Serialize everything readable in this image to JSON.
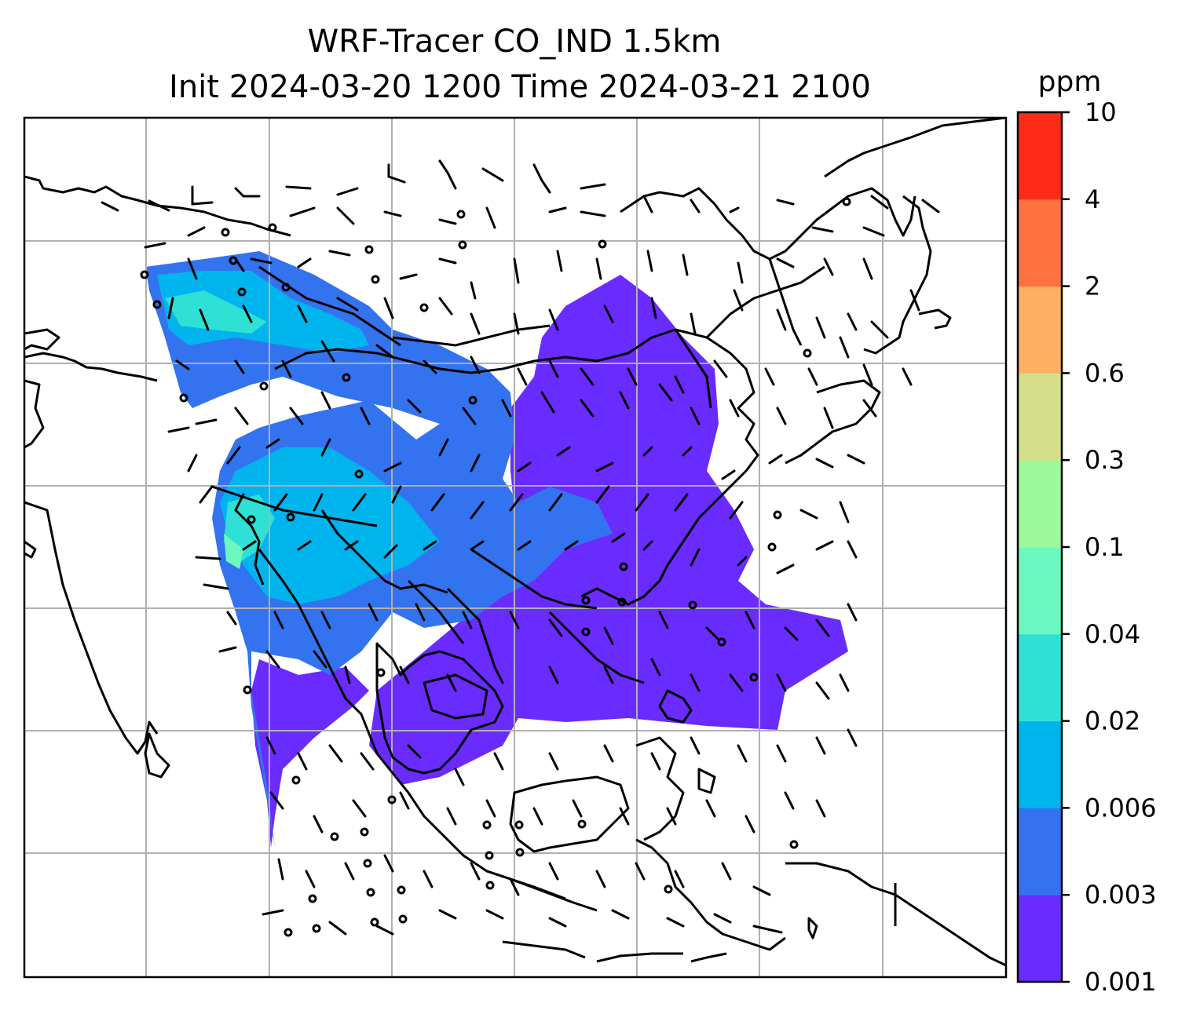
{
  "title": {
    "line1": "WRF-Tracer CO_IND 1.5km",
    "line2": "Init 2024-03-20 1200 Time 2024-03-21 2100"
  },
  "colorbar": {
    "unit": "ppm",
    "levels": [
      "0.001",
      "0.003",
      "0.006",
      "0.02",
      "0.04",
      "0.1",
      "0.3",
      "0.6",
      "2",
      "4",
      "10"
    ],
    "colors": [
      "#6a2bff",
      "#3373f0",
      "#00b4ee",
      "#2fe0d4",
      "#6cf9c1",
      "#9cf99c",
      "#d3e087",
      "#ffb062",
      "#ff713e",
      "#ff2b18"
    ]
  },
  "map": {
    "gridlines": "on",
    "features": [
      "coastlines",
      "country-borders",
      "wind-barbs",
      "tracer-concentration-fill"
    ]
  }
}
